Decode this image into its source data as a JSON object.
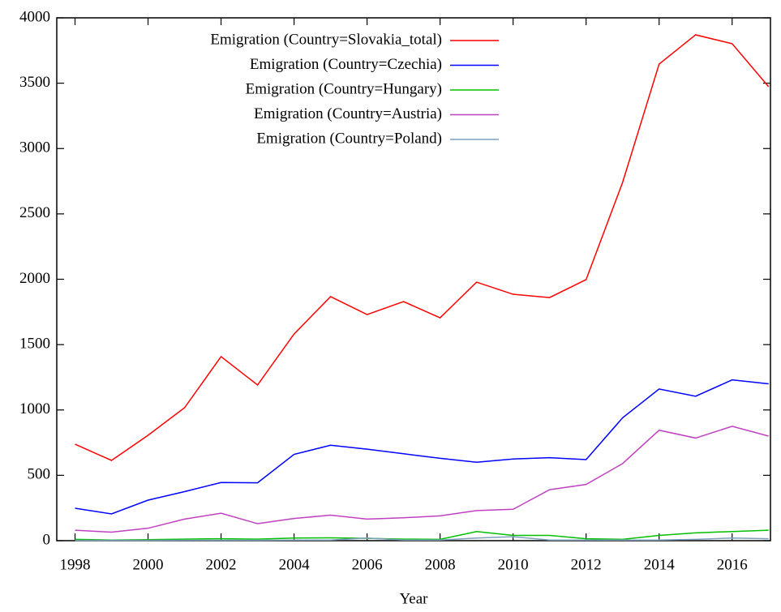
{
  "chart_data": {
    "type": "line",
    "x_label": "Year",
    "x": [
      1998,
      1999,
      2000,
      2001,
      2002,
      2003,
      2004,
      2005,
      2006,
      2007,
      2008,
      2009,
      2010,
      2011,
      2012,
      2013,
      2014,
      2015,
      2016,
      2017
    ],
    "series": [
      {
        "name": "Emigration (Country=Slovakia_total)",
        "color": "#ff0000",
        "values": [
          738,
          614,
          806,
          1017,
          1408,
          1191,
          1581,
          1867,
          1730,
          1829,
          1705,
          1978,
          1885,
          1860,
          1997,
          2741,
          3646,
          3870,
          3802,
          3473
        ]
      },
      {
        "name": "Emigration (Country=Czechia)",
        "color": "#0000ff",
        "values": [
          248,
          205,
          310,
          375,
          445,
          443,
          660,
          730,
          700,
          665,
          630,
          600,
          625,
          635,
          620,
          940,
          1160,
          1105,
          1230,
          1200
        ]
      },
      {
        "name": "Emigration (Country=Hungary)",
        "color": "#00c000",
        "values": [
          10,
          5,
          8,
          12,
          15,
          12,
          20,
          22,
          18,
          12,
          10,
          70,
          40,
          40,
          15,
          10,
          40,
          60,
          70,
          80
        ]
      },
      {
        "name": "Emigration (Country=Austria)",
        "color": "#c040c0",
        "values": [
          80,
          65,
          95,
          165,
          210,
          130,
          170,
          195,
          165,
          175,
          190,
          230,
          240,
          390,
          430,
          590,
          845,
          785,
          875,
          800
        ]
      },
      {
        "name": "Emigration (Country=Poland)",
        "color": "#7f9fbf",
        "values": [
          2,
          2,
          2,
          3,
          3,
          3,
          5,
          5,
          20,
          5,
          5,
          20,
          30,
          5,
          5,
          5,
          5,
          10,
          20,
          15
        ]
      }
    ],
    "xlim": [
      1997.5,
      2017.05
    ],
    "ylim": [
      0,
      4000
    ],
    "xticks": [
      1998,
      2000,
      2002,
      2004,
      2006,
      2008,
      2010,
      2012,
      2014,
      2016
    ],
    "yticks": [
      0,
      500,
      1000,
      1500,
      2000,
      2500,
      3000,
      3500,
      4000
    ],
    "legend": "top-left"
  }
}
